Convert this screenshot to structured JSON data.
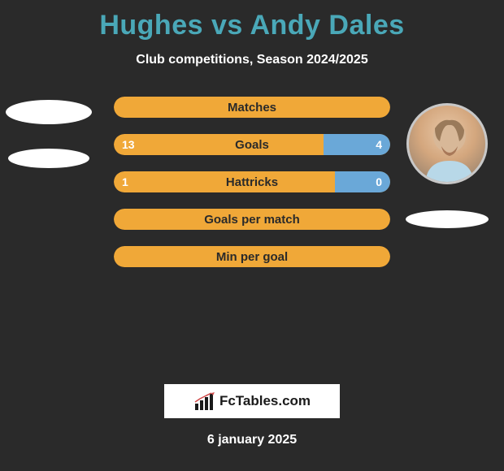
{
  "title_color": "#4aa8b8",
  "title": "Hughes vs Andy Dales",
  "subtitle": "Club competitions, Season 2024/2025",
  "colors": {
    "background": "#2a2a2a",
    "bar_orange": "#f0a838",
    "bar_blue": "#6aa8d8",
    "text_dark": "#2a2a2a",
    "text_light": "#ffffff"
  },
  "bars": [
    {
      "label": "Matches",
      "left_val": "",
      "right_val": "",
      "left_pct": 100,
      "right_pct": 0,
      "left_color": "#f0a838",
      "right_color": "#6aa8d8",
      "show_left": false,
      "show_right": false
    },
    {
      "label": "Goals",
      "left_val": "13",
      "right_val": "4",
      "left_pct": 76,
      "right_pct": 24,
      "left_color": "#f0a838",
      "right_color": "#6aa8d8",
      "show_left": true,
      "show_right": true
    },
    {
      "label": "Hattricks",
      "left_val": "1",
      "right_val": "0",
      "left_pct": 80,
      "right_pct": 20,
      "left_color": "#f0a838",
      "right_color": "#6aa8d8",
      "show_left": true,
      "show_right": true
    },
    {
      "label": "Goals per match",
      "left_val": "",
      "right_val": "",
      "left_pct": 100,
      "right_pct": 0,
      "left_color": "#f0a838",
      "right_color": "#6aa8d8",
      "show_left": false,
      "show_right": false
    },
    {
      "label": "Min per goal",
      "left_val": "",
      "right_val": "",
      "left_pct": 100,
      "right_pct": 0,
      "left_color": "#f0a838",
      "right_color": "#6aa8d8",
      "show_left": false,
      "show_right": false
    }
  ],
  "logo_text": "FcTables.com",
  "footer_date": "6 january 2025",
  "player_left": {
    "name": "Hughes",
    "has_photo": false
  },
  "player_right": {
    "name": "Andy Dales",
    "has_photo": true
  }
}
